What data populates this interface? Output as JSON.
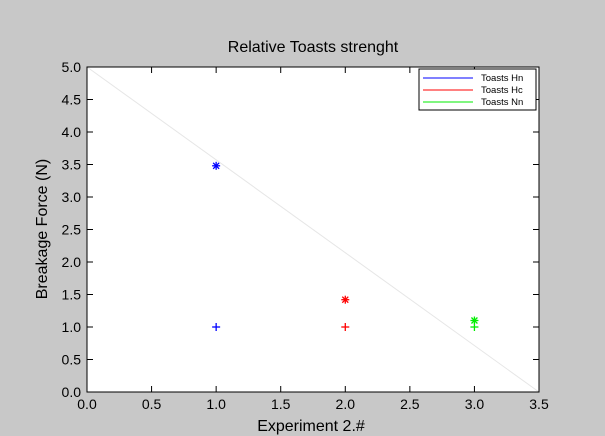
{
  "chart_data": {
    "type": "scatter",
    "title": "Relative Toasts strenght",
    "xlabel": "Experiment 2.#",
    "ylabel": "Breakage Force (N)",
    "xlim": [
      0.0,
      3.5
    ],
    "ylim": [
      0.0,
      5.0
    ],
    "xticks": [
      "0.0",
      "0.5",
      "1.0",
      "1.5",
      "2.0",
      "2.5",
      "3.0",
      "3.5"
    ],
    "yticks": [
      "0.0",
      "0.5",
      "1.0",
      "1.5",
      "2.0",
      "2.5",
      "3.0",
      "3.5",
      "4.0",
      "4.5",
      "5.0"
    ],
    "grid": false,
    "legend_position": "top-right",
    "series": [
      {
        "name": "Toasts Hn",
        "color": "#0000ff",
        "points": [
          {
            "x": 1.0,
            "y": 3.48,
            "marker": "asterisk"
          },
          {
            "x": 1.0,
            "y": 1.0,
            "marker": "plus"
          }
        ]
      },
      {
        "name": "Toasts Hc",
        "color": "#ff0000",
        "points": [
          {
            "x": 2.0,
            "y": 1.42,
            "marker": "asterisk"
          },
          {
            "x": 2.0,
            "y": 1.0,
            "marker": "plus"
          }
        ]
      },
      {
        "name": "Toasts Nn",
        "color": "#00ee00",
        "points": [
          {
            "x": 3.0,
            "y": 1.1,
            "marker": "asterisk"
          },
          {
            "x": 3.0,
            "y": 1.0,
            "marker": "plus"
          }
        ]
      }
    ],
    "reference_line": {
      "color": "#e6e6e6",
      "from": [
        0.0,
        5.0
      ],
      "to": [
        3.5,
        0.0
      ]
    }
  }
}
